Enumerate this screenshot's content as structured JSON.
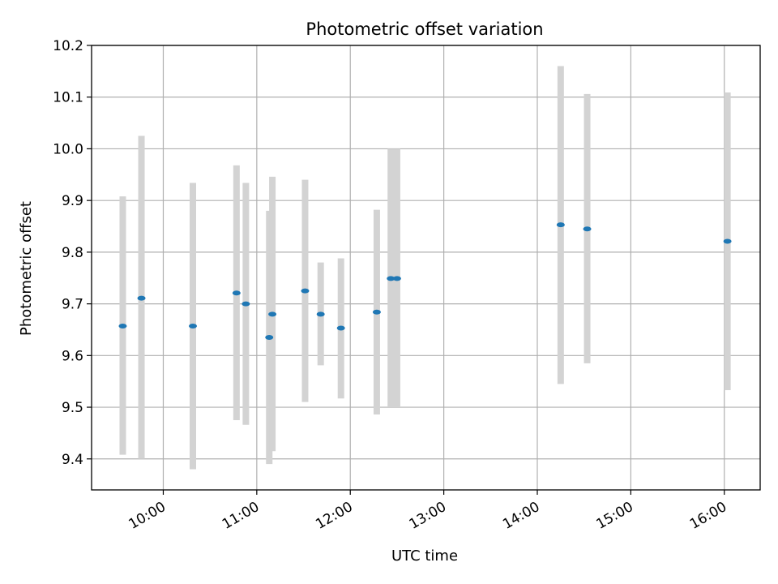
{
  "chart_data": {
    "type": "scatter",
    "title": "Photometric offset variation",
    "xlabel": "UTC time",
    "ylabel": "Photometric offset",
    "xlim": [
      "09:14",
      "16:23"
    ],
    "ylim": [
      9.34,
      10.2
    ],
    "x_ticks": [
      "10:00",
      "11:00",
      "12:00",
      "13:00",
      "14:00",
      "15:00",
      "16:00"
    ],
    "y_ticks": [
      "9.4",
      "9.5",
      "9.6",
      "9.7",
      "9.8",
      "9.9",
      "10.0",
      "10.1",
      "10.2"
    ],
    "grid": true,
    "colors": {
      "point": "#1f77b4",
      "error_bar": "#d3d3d3",
      "grid": "#b0b0b0"
    },
    "points": [
      {
        "time": "09:34",
        "offset": 9.657,
        "yerr_low": 9.408,
        "yerr_high": 9.908
      },
      {
        "time": "09:46",
        "offset": 9.711,
        "yerr_low": 9.4,
        "yerr_high": 10.025
      },
      {
        "time": "10:19",
        "offset": 9.657,
        "yerr_low": 9.38,
        "yerr_high": 9.934
      },
      {
        "time": "10:47",
        "offset": 9.721,
        "yerr_low": 9.475,
        "yerr_high": 9.968
      },
      {
        "time": "10:53",
        "offset": 9.7,
        "yerr_low": 9.466,
        "yerr_high": 9.934
      },
      {
        "time": "11:08",
        "offset": 9.635,
        "yerr_low": 9.39,
        "yerr_high": 9.88
      },
      {
        "time": "11:10",
        "offset": 9.68,
        "yerr_low": 9.415,
        "yerr_high": 9.946
      },
      {
        "time": "11:31",
        "offset": 9.725,
        "yerr_low": 9.51,
        "yerr_high": 9.94
      },
      {
        "time": "11:41",
        "offset": 9.68,
        "yerr_low": 9.581,
        "yerr_high": 9.78
      },
      {
        "time": "11:54",
        "offset": 9.653,
        "yerr_low": 9.517,
        "yerr_high": 9.788
      },
      {
        "time": "12:17",
        "offset": 9.684,
        "yerr_low": 9.486,
        "yerr_high": 9.882
      },
      {
        "time": "12:26",
        "offset": 9.749,
        "yerr_low": 9.5,
        "yerr_high": 10.0
      },
      {
        "time": "12:30",
        "offset": 9.749,
        "yerr_low": 9.5,
        "yerr_high": 10.0
      },
      {
        "time": "14:15",
        "offset": 9.853,
        "yerr_low": 9.545,
        "yerr_high": 10.16
      },
      {
        "time": "14:32",
        "offset": 9.845,
        "yerr_low": 9.585,
        "yerr_high": 10.106
      },
      {
        "time": "16:02",
        "offset": 9.821,
        "yerr_low": 9.533,
        "yerr_high": 10.109
      }
    ]
  }
}
